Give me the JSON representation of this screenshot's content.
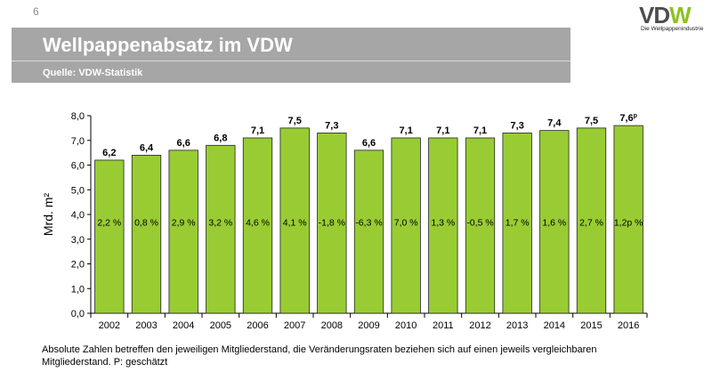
{
  "page": {
    "slide_number": "6",
    "title": "Wellpappenabsatz im VDW",
    "subtitle": "Quelle: VDW-Statistik",
    "footnote": "Absolute Zahlen betreffen den jeweiligen Mitgliederstand, die Veränderungsraten beziehen sich auf einen jeweils vergleichbaren Mitgliederstand. P: geschätzt"
  },
  "logo": {
    "text_dark_v": "V",
    "text_dark_d": "D",
    "text_green_w": "W",
    "tagline": "Die Wellpappenindustrie"
  },
  "colors": {
    "bar_fill": "#99cc33",
    "bar_stroke": "#222222",
    "header_band": "#a6a6a6",
    "logo_green": "#8dc21f"
  },
  "chart_data": {
    "type": "bar",
    "categories": [
      "2002",
      "2003",
      "2004",
      "2005",
      "2006",
      "2007",
      "2008",
      "2009",
      "2010",
      "2011",
      "2012",
      "2013",
      "2014",
      "2015",
      "2016"
    ],
    "values": [
      6.2,
      6.4,
      6.6,
      6.8,
      7.1,
      7.5,
      7.3,
      6.6,
      7.1,
      7.1,
      7.1,
      7.3,
      7.4,
      7.5,
      7.6
    ],
    "value_labels": [
      "6,2",
      "6,4",
      "6,6",
      "6,8",
      "7,1",
      "7,5",
      "7,3",
      "6,6",
      "7,1",
      "7,1",
      "7,1",
      "7,3",
      "7,4",
      "7,5",
      "7,6"
    ],
    "value_label_suffix": [
      "",
      "",
      "",
      "",
      "",
      "",
      "",
      "",
      "",
      "",
      "",
      "",
      "",
      "",
      "p"
    ],
    "change_labels": [
      "2,2 %",
      "0,8 %",
      "2,9 %",
      "3,2 %",
      "4,6 %",
      "4,1 %",
      "-1,8 %",
      "-6,3 %",
      "7,0 %",
      "1,3 %",
      "-0,5 %",
      "1,7 %",
      "1,6 %",
      "2,7 %",
      "1,2p %"
    ],
    "change_label_level": 3.7,
    "ylabel": "Mrd. m²",
    "xlabel": "",
    "ylim": [
      0,
      8
    ],
    "yticks": [
      0,
      1,
      2,
      3,
      4,
      5,
      6,
      7,
      8
    ],
    "ytick_labels": [
      "0,0",
      "1,0",
      "2,0",
      "3,0",
      "4,0",
      "5,0",
      "6,0",
      "7,0",
      "8,0"
    ],
    "grid": false,
    "legend": "none"
  }
}
